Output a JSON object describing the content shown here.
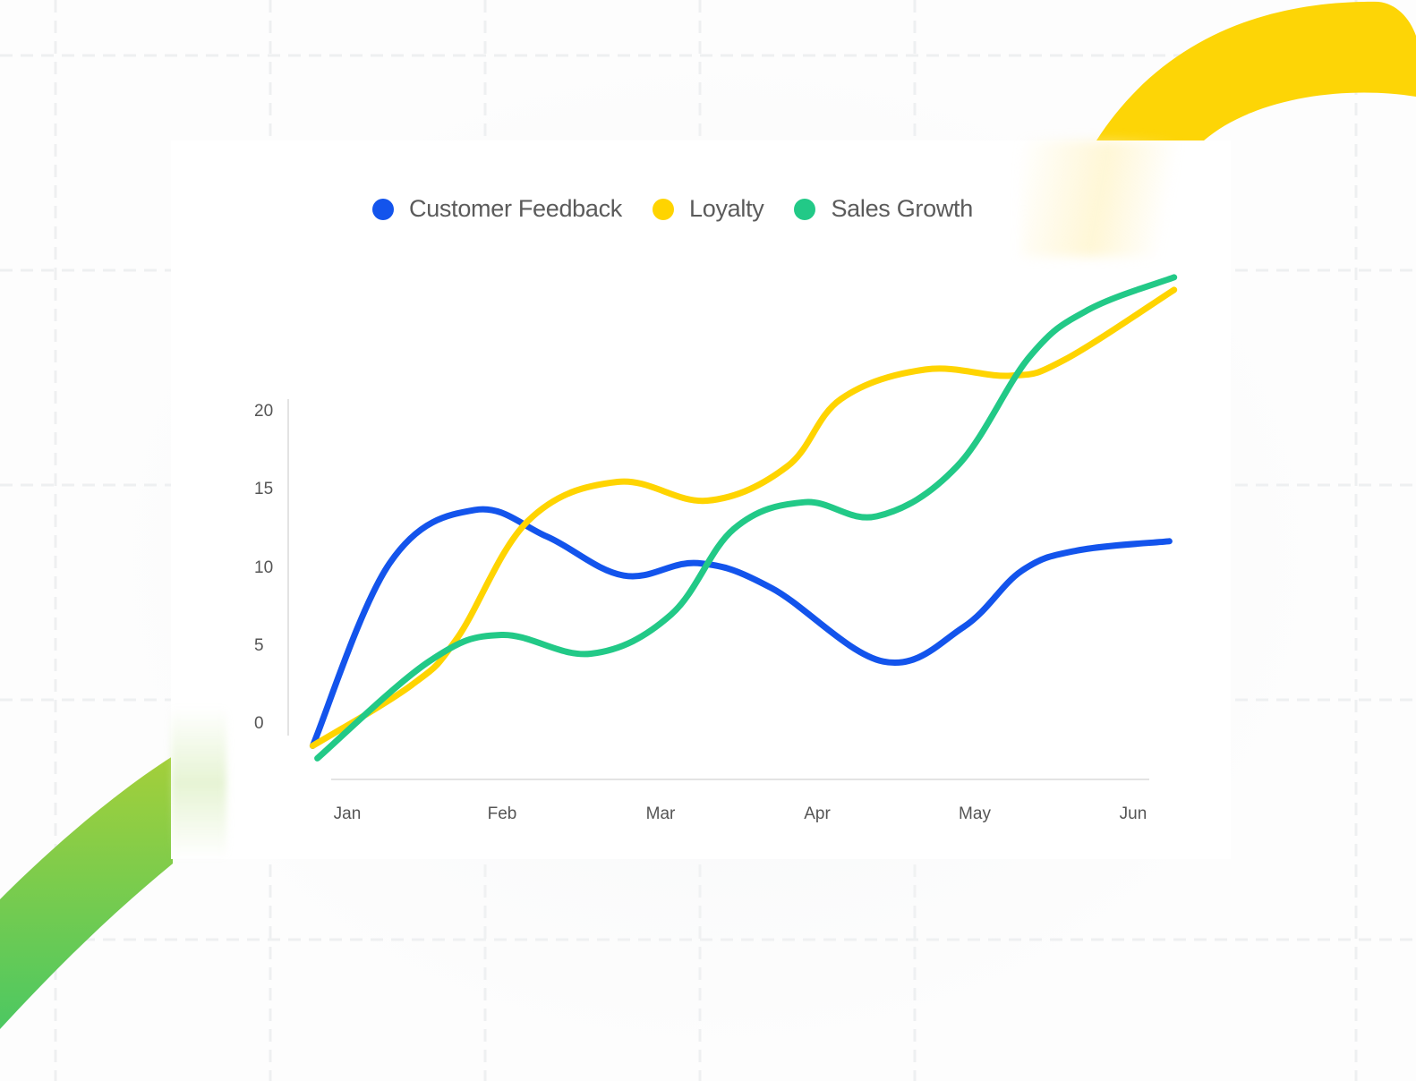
{
  "legend": {
    "items": [
      {
        "label": "Customer Feedback",
        "color": "#1354EC"
      },
      {
        "label": "Loyalty",
        "color": "#FFD400"
      },
      {
        "label": "Sales Growth",
        "color": "#22C987"
      }
    ]
  },
  "axes": {
    "y_ticks": [
      "20",
      "15",
      "10",
      "5",
      "0"
    ],
    "x_ticks": [
      "Jan",
      "Feb",
      "Mar",
      "Apr",
      "May",
      "Jun"
    ]
  },
  "colors": {
    "axis_line": "#e3e3e3",
    "tick_text": "#555555",
    "legend_text": "#5b5b5b",
    "decor_yellow": "#FDD506",
    "decor_green_top": "#A4CF3A",
    "decor_green_bottom": "#4CC862"
  },
  "chart_data": {
    "type": "line",
    "title": "",
    "xlabel": "",
    "ylabel": "",
    "categories": [
      "Jan",
      "Feb",
      "Mar",
      "Apr",
      "May",
      "Jun"
    ],
    "ylim": [
      0,
      20
    ],
    "y_ticks": [
      0,
      5,
      10,
      15,
      20
    ],
    "grid": false,
    "legend_position": "top",
    "smooth": true,
    "series": [
      {
        "name": "Customer Feedback",
        "color": "#1354EC",
        "points": [
          [
            -0.22,
            -1.4
          ],
          [
            0.27,
            10.3
          ],
          [
            0.81,
            13.7
          ],
          [
            1.27,
            12.0
          ],
          [
            1.76,
            9.5
          ],
          [
            2.23,
            10.3
          ],
          [
            2.7,
            8.7
          ],
          [
            3.41,
            4.0
          ],
          [
            3.92,
            6.2
          ],
          [
            4.29,
            9.8
          ],
          [
            4.64,
            11.1
          ],
          [
            5.23,
            11.7
          ]
        ]
      },
      {
        "name": "Loyalty",
        "color": "#FFD400",
        "points": [
          [
            -0.22,
            -1.4
          ],
          [
            0.41,
            2.5
          ],
          [
            0.7,
            5.5
          ],
          [
            1.15,
            13.0
          ],
          [
            1.72,
            15.5
          ],
          [
            2.29,
            14.3
          ],
          [
            2.8,
            16.5
          ],
          [
            3.14,
            20.8
          ],
          [
            3.68,
            22.7
          ],
          [
            4.22,
            22.3
          ],
          [
            4.56,
            23.3
          ],
          [
            5.26,
            27.8
          ]
        ]
      },
      {
        "name": "Sales Growth",
        "color": "#22C987",
        "points": [
          [
            -0.19,
            -2.2
          ],
          [
            0.52,
            4.0
          ],
          [
            0.98,
            5.7
          ],
          [
            1.55,
            4.5
          ],
          [
            2.06,
            7.0
          ],
          [
            2.46,
            12.5
          ],
          [
            2.91,
            14.2
          ],
          [
            3.37,
            13.3
          ],
          [
            3.88,
            16.5
          ],
          [
            4.34,
            23.5
          ],
          [
            4.71,
            26.5
          ],
          [
            5.26,
            28.6
          ]
        ]
      }
    ]
  }
}
